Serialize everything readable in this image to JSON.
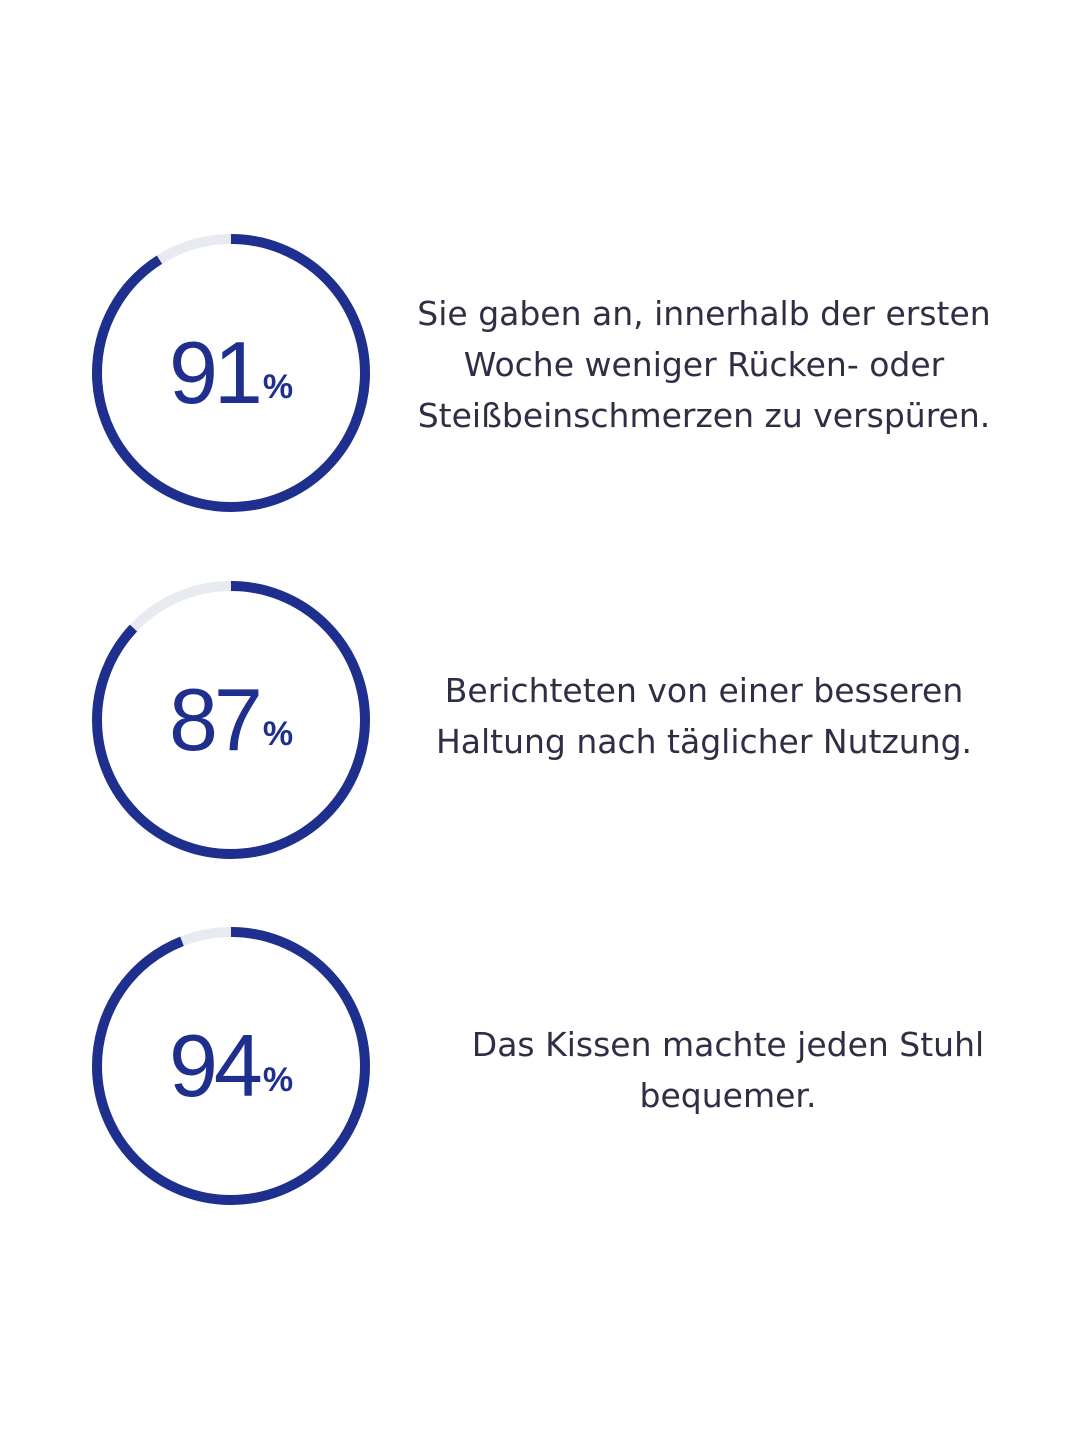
{
  "colors": {
    "ring_progress": "#1e2f8e",
    "ring_track": "#e8eaf2",
    "number_text": "#1e2f8e",
    "body_text": "#2e2e45"
  },
  "stats": [
    {
      "value": "91",
      "unit": "%",
      "progress": 0.91,
      "text": "Sie gaben an, innerhalb der ersten Woche weniger Rücken- oder Steißbeinschmerzen zu verspüren."
    },
    {
      "value": "87",
      "unit": "%",
      "progress": 0.87,
      "text": "Berichteten von einer besseren Haltung nach täglicher Nutzung."
    },
    {
      "value": "94",
      "unit": "%",
      "progress": 0.94,
      "text": "Das Kissen machte jeden Stuhl bequemer."
    }
  ]
}
